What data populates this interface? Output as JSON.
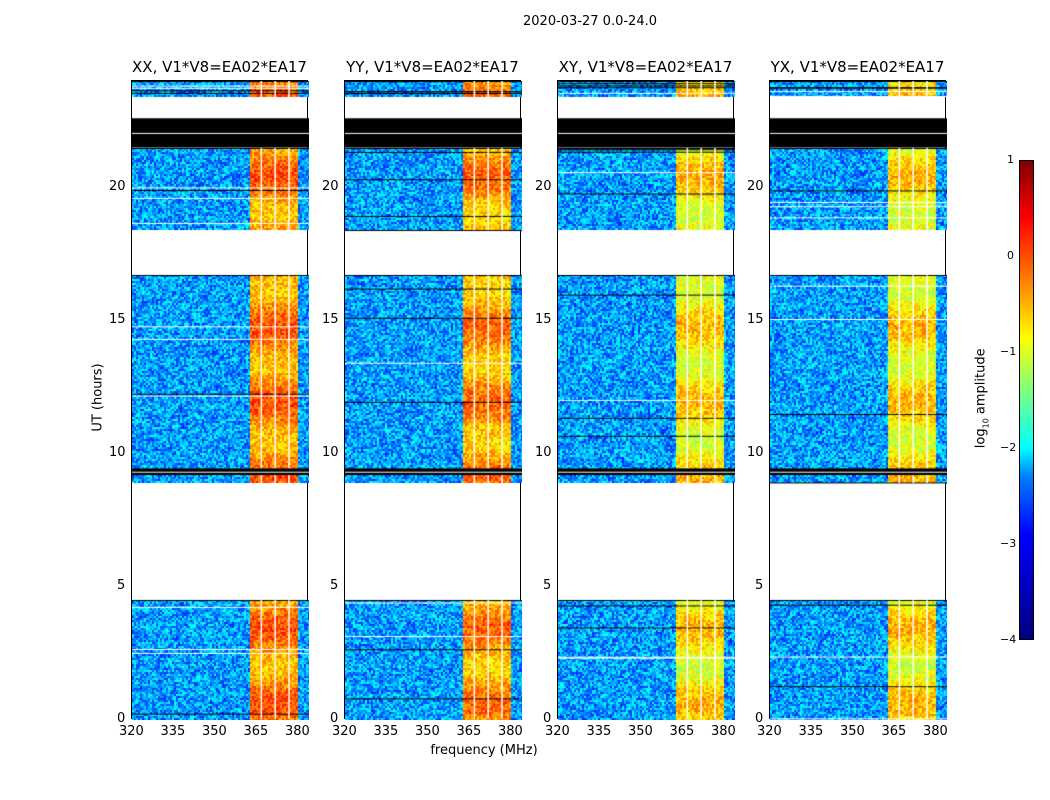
{
  "chart_data": {
    "type": "heatmap",
    "title": "2020-03-27 0.0-24.0",
    "xlabel": "frequency (MHz)",
    "ylabel": "UT (hours)",
    "xlim": [
      320,
      384
    ],
    "ylim": [
      0,
      24
    ],
    "xticks": [
      "320",
      "335",
      "350",
      "365",
      "380"
    ],
    "xtick_values": [
      320,
      335,
      350,
      365,
      380
    ],
    "yticks": [
      "0",
      "5",
      "10",
      "15",
      "20"
    ],
    "ytick_values": [
      0,
      5,
      10,
      15,
      20
    ],
    "colorbar": {
      "label": "log10 amplitude",
      "label_main": "log",
      "label_sub": "10",
      "label_rest": " amplitude",
      "range": [
        -4,
        1
      ],
      "ticks": [
        "1",
        "0",
        "−1",
        "−2",
        "−3",
        "−4"
      ],
      "tick_values": [
        1,
        0,
        -1,
        -2,
        -3,
        -4
      ],
      "colormap": "jet"
    },
    "panels": [
      {
        "title": "XX, V1*V8=EA02*EA17",
        "signal_level": -0.3
      },
      {
        "title": "YY, V1*V8=EA02*EA17",
        "signal_level": -0.4
      },
      {
        "title": "XY, V1*V8=EA02*EA17",
        "signal_level": -0.8
      },
      {
        "title": "YX, V1*V8=EA02*EA17",
        "signal_level": -0.8
      }
    ],
    "data_time_ranges": [
      [
        0.05,
        4.5
      ],
      [
        8.9,
        16.7
      ],
      [
        18.4,
        21.5
      ],
      [
        23.4,
        24
      ]
    ],
    "flagged_time_ranges": [
      [
        9.2,
        9.45
      ],
      [
        21.5,
        22.6
      ]
    ],
    "signal_band_MHz": [
      362,
      380
    ],
    "noise_level": -2.6,
    "white_channel_lines_MHz": [
      366.5,
      371.5,
      376.5
    ]
  }
}
